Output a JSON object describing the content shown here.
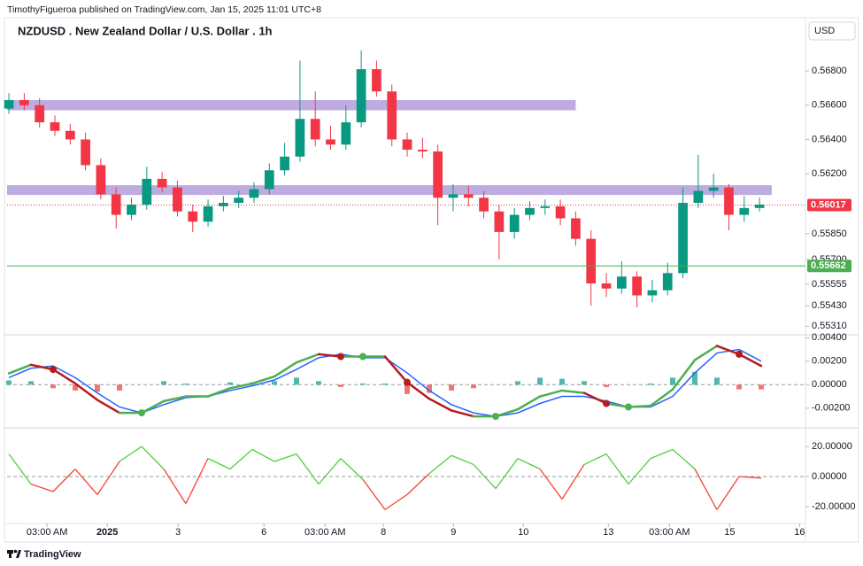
{
  "header": "TimothyFigueroa published on TradingView.com, Jan 15, 2025 11:01 UTC+8",
  "currency": "USD",
  "footer": "TradingView",
  "chart_data": [
    {
      "type": "candlestick",
      "title": "NZDUSD . New Zealand Dollar / U.S. Dollar . 1h",
      "open": [
        0.5658,
        0.5663,
        0.566,
        0.565,
        0.5645,
        0.564,
        0.5625,
        0.5608,
        0.5596,
        0.5602,
        0.5617,
        0.5612,
        0.5598,
        0.5592,
        0.5601,
        0.5603,
        0.5606,
        0.5611,
        0.5622,
        0.563,
        0.5652,
        0.564,
        0.5637,
        0.565,
        0.5681,
        0.5668,
        0.564,
        0.5634,
        0.5633,
        0.5606,
        0.5608,
        0.5606,
        0.5598,
        0.5586,
        0.5596,
        0.56,
        0.5601,
        0.5594,
        0.5582,
        0.5556,
        0.5553,
        0.556,
        0.5549,
        0.5552,
        0.5562,
        0.5603,
        0.561,
        0.5612,
        0.5596,
        0.56
      ],
      "high": [
        0.5667,
        0.5667,
        0.5664,
        0.5654,
        0.5649,
        0.5644,
        0.5629,
        0.5612,
        0.5606,
        0.5624,
        0.5621,
        0.5616,
        0.5602,
        0.5605,
        0.5607,
        0.561,
        0.5615,
        0.5626,
        0.5638,
        0.5686,
        0.5668,
        0.5648,
        0.566,
        0.5692,
        0.5686,
        0.5672,
        0.5644,
        0.5641,
        0.5637,
        0.5614,
        0.5613,
        0.561,
        0.5602,
        0.56,
        0.5604,
        0.5605,
        0.5605,
        0.5598,
        0.5587,
        0.5562,
        0.5569,
        0.5563,
        0.5558,
        0.5568,
        0.5612,
        0.5631,
        0.562,
        0.5614,
        0.5607,
        0.5606
      ],
      "low": [
        0.5655,
        0.5657,
        0.5647,
        0.5642,
        0.5637,
        0.5622,
        0.5605,
        0.5588,
        0.5593,
        0.5599,
        0.5609,
        0.5595,
        0.5586,
        0.5589,
        0.5598,
        0.56,
        0.5603,
        0.5608,
        0.5619,
        0.5627,
        0.5636,
        0.5634,
        0.5634,
        0.5647,
        0.5665,
        0.5636,
        0.563,
        0.5629,
        0.559,
        0.5598,
        0.5601,
        0.5594,
        0.557,
        0.5582,
        0.5593,
        0.5596,
        0.559,
        0.5578,
        0.5543,
        0.5548,
        0.555,
        0.5542,
        0.5545,
        0.5549,
        0.5559,
        0.56,
        0.5606,
        0.5587,
        0.5592,
        0.5598
      ],
      "close": [
        0.5663,
        0.566,
        0.565,
        0.5645,
        0.564,
        0.5625,
        0.5608,
        0.5596,
        0.5602,
        0.5617,
        0.5612,
        0.5598,
        0.5592,
        0.5601,
        0.5603,
        0.5606,
        0.5611,
        0.5622,
        0.563,
        0.5652,
        0.564,
        0.5637,
        0.565,
        0.5681,
        0.5668,
        0.564,
        0.5634,
        0.5633,
        0.5606,
        0.5608,
        0.5606,
        0.5598,
        0.5586,
        0.5596,
        0.56,
        0.5601,
        0.5594,
        0.5582,
        0.5556,
        0.5553,
        0.556,
        0.5549,
        0.5552,
        0.5562,
        0.5603,
        0.561,
        0.5612,
        0.5596,
        0.56,
        0.5602
      ],
      "up_color": "#089981",
      "down_color": "#f23645",
      "xlim": [
        -0.12,
        52
      ],
      "xticks": [
        {
          "value": 2.49,
          "label": "03:00 AM"
        },
        {
          "value": 6.42,
          "label": "2025"
        },
        {
          "value": 11.04,
          "label": "3"
        },
        {
          "value": 16.65,
          "label": "6"
        },
        {
          "value": 20.64,
          "label": "03:00 AM"
        },
        {
          "value": 24.45,
          "label": "8"
        },
        {
          "value": 29.02,
          "label": "9"
        },
        {
          "value": 33.58,
          "label": "10"
        },
        {
          "value": 39.13,
          "label": "13"
        },
        {
          "value": 43.12,
          "label": "03:00 AM"
        },
        {
          "value": 47.05,
          "label": "15"
        },
        {
          "value": 51.62,
          "label": "16"
        }
      ],
      "ylim": [
        0.5526,
        0.571
      ],
      "yticks": [
        {
          "value": 0.568,
          "label": "0.56800"
        },
        {
          "value": 0.566,
          "label": "0.56600"
        },
        {
          "value": 0.564,
          "label": "0.56400"
        },
        {
          "value": 0.562,
          "label": "0.56200"
        },
        {
          "value": 0.5585,
          "label": "0.55850"
        },
        {
          "value": 0.557,
          "label": "0.55700"
        },
        0.55555,
        {
          "value": 0.5543,
          "label": "0.55430"
        },
        {
          "value": 0.5531,
          "label": "0.55310"
        }
      ],
      "zones": [
        {
          "low": 0.5657,
          "high": 0.5663,
          "x_end": 37
        },
        {
          "low": 0.56076,
          "high": 0.56133,
          "x_end": 49.8
        }
      ],
      "zone_color": "#b39ddb",
      "last_price": 0.56017,
      "last_price_color": "#f23645",
      "level": 0.55662,
      "level_color": "#4caf50"
    },
    {
      "type": "macd",
      "xlim": [
        -0.08,
        36
      ],
      "ylim": [
        -0.0036,
        0.0041
      ],
      "yticks": [
        {
          "value": 0.004,
          "label": "0.00400"
        },
        {
          "value": 0.002,
          "label": "0.00200"
        },
        {
          "value": 0,
          "label": "0.00000"
        },
        {
          "value": -0.002,
          "label": "-0.00200"
        }
      ],
      "series": [
        {
          "color": "#4caf50",
          "down_color": "#b71c1c",
          "values": [
            0.00096,
            0.0017,
            0.0013,
            0.0001,
            -0.0013,
            -0.0024,
            -0.0024,
            -0.0014,
            -0.001,
            -0.001,
            -0.0003,
            0.0001,
            0.0007,
            0.0019,
            0.0026,
            0.0024,
            0.0024,
            0.0024,
            0.0002,
            -0.0012,
            -0.0022,
            -0.0027,
            -0.0027,
            -0.0021,
            -0.001,
            -0.0005,
            -0.0007,
            -0.0016,
            -0.0019,
            -0.0018,
            -0.0004,
            0.0021,
            0.0033,
            0.0026,
            0.0016
          ]
        },
        {
          "color": "#2962ff",
          "values": [
            0.0006,
            0.0014,
            0.0016,
            0.0006,
            -0.0007,
            -0.0019,
            -0.0024,
            -0.0017,
            -0.0011,
            -0.001,
            -0.0005,
            -0.0001,
            0.0004,
            0.0013,
            0.0023,
            0.0026,
            0.0023,
            0.0023,
            0.001,
            -0.0005,
            -0.0017,
            -0.0024,
            -0.0027,
            -0.0024,
            -0.0016,
            -0.001,
            -0.001,
            -0.0014,
            -0.0019,
            -0.0019,
            -0.001,
            0.001,
            0.0027,
            0.003,
            0.002
          ]
        }
      ],
      "histogram": {
        "up_color": "#26a69a",
        "down_color": "#ef5350",
        "values": [
          0.00036,
          0.0003,
          -0.0003,
          -0.0005,
          -0.0006,
          -0.0005,
          0,
          0.0003,
          0.0001,
          0,
          0.0002,
          0.0002,
          0.0003,
          0.0006,
          0.0003,
          -0.0002,
          0.0001,
          0.0001,
          -0.0008,
          -0.0007,
          -0.0005,
          -0.0003,
          0,
          0.0003,
          0.0006,
          0.0005,
          0.0003,
          -0.0002,
          0,
          0.0001,
          0.0006,
          0.0011,
          0.0006,
          -0.0004,
          -0.0004
        ]
      }
    },
    {
      "type": "line",
      "xlim": [
        -0.08,
        36
      ],
      "ylim": [
        -30.6,
        31.2
      ],
      "yticks": [
        {
          "value": 20,
          "label": "20.00000"
        },
        {
          "value": 0,
          "label": "0.00000"
        },
        {
          "value": -20,
          "label": "-20.00000"
        }
      ],
      "series": [
        {
          "color": "#4cd137",
          "down_color": "#f44336",
          "values": [
            15,
            -5,
            -10,
            5,
            -12,
            10,
            20,
            5,
            -18,
            12,
            5,
            18,
            10,
            15,
            -5,
            12,
            -2,
            -22,
            -12,
            2,
            14,
            8,
            -8,
            12,
            5,
            -15,
            8,
            15,
            -5,
            12,
            18,
            5,
            -22,
            0,
            -1
          ]
        }
      ]
    }
  ]
}
